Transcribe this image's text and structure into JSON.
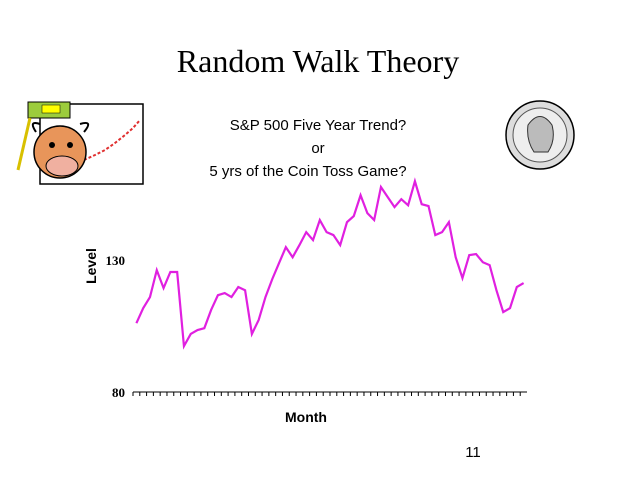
{
  "slide": {
    "title": "Random Walk Theory",
    "page_number": "11"
  },
  "chart_data": {
    "type": "line",
    "title_lines": [
      "S&P 500 Five Year Trend?",
      "or",
      "5 yrs of the Coin Toss Game?"
    ],
    "x_label": "Month",
    "y_label": "Level",
    "categories": [
      null,
      null,
      null,
      null,
      null,
      null,
      null,
      null,
      null,
      null,
      null,
      null,
      null,
      null,
      null,
      null,
      null,
      null,
      null,
      null,
      null,
      null,
      null,
      null,
      null,
      null,
      null,
      null,
      null,
      null,
      null,
      null,
      null,
      null,
      null,
      null,
      null,
      null,
      null,
      null,
      null,
      null,
      null,
      null,
      null,
      null,
      null,
      null,
      null,
      null,
      null,
      null,
      null,
      null,
      null,
      null,
      null,
      null
    ],
    "series": [
      {
        "name": "Level",
        "color": "#e020e0",
        "values": [
          106.1,
          111.8,
          116.0,
          126.2,
          119.4,
          125.5,
          125.5,
          97.4,
          102.0,
          103.5,
          104.2,
          111.1,
          116.7,
          117.5,
          116.0,
          119.8,
          118.6,
          102.0,
          107.3,
          116.0,
          122.8,
          128.9,
          134.9,
          131.1,
          135.7,
          140.6,
          137.6,
          145.2,
          140.6,
          139.5,
          135.7,
          144.4,
          146.7,
          154.6,
          147.8,
          145.2,
          157.7,
          153.9,
          150.1,
          153.1,
          150.8,
          159.9,
          151.2,
          150.5,
          139.5,
          140.6,
          144.4,
          131.1,
          123.2,
          131.9,
          132.3,
          129.2,
          128.1,
          118.6,
          110.3,
          111.8,
          119.8,
          121.3
        ]
      }
    ],
    "ylim": [
      80,
      160
    ],
    "yticks": [
      80,
      130
    ],
    "grid": false
  }
}
